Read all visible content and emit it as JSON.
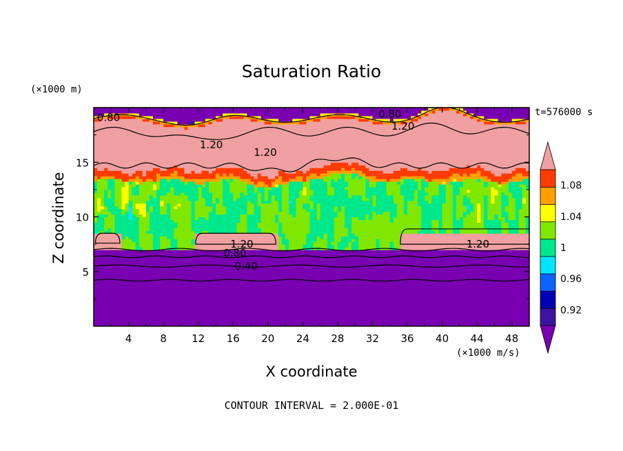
{
  "chart_data": {
    "type": "heatmap",
    "title": "Saturation Ratio",
    "xlabel": "X coordinate",
    "ylabel": "Z coordinate",
    "x_unit": "(×1000 m/s)",
    "y_unit": "(×1000 m)",
    "time_label": "t=576000 s",
    "footer": "CONTOUR INTERVAL = 2.000E-01",
    "xlim": [
      0,
      50
    ],
    "ylim": [
      0,
      20
    ],
    "x_ticks": [
      4,
      8,
      12,
      16,
      20,
      24,
      28,
      32,
      36,
      40,
      44,
      48
    ],
    "y_ticks": [
      5,
      10,
      15
    ],
    "colorbar": {
      "levels": [
        0.9,
        0.92,
        0.94,
        0.96,
        0.98,
        1,
        1.02,
        1.04,
        1.06,
        1.08,
        1.1
      ],
      "labels": [
        "0.92",
        "0.96",
        "1",
        "1.04",
        "1.08"
      ],
      "label_values": [
        0.92,
        0.96,
        1,
        1.04,
        1.08
      ],
      "colors": [
        "#7800b0",
        "#3c14a0",
        "#0000b4",
        "#0a64ff",
        "#00e6ff",
        "#00e88c",
        "#80e800",
        "#ffff00",
        "#ffa000",
        "#ff3c00",
        "#f0a0a0"
      ],
      "extend": "both"
    },
    "contour_labels": [
      {
        "text": "0.80",
        "x": 1.7,
        "y": 19.1
      },
      {
        "text": "0.80",
        "x": 34.0,
        "y": 19.4
      },
      {
        "text": "1.20",
        "x": 35.5,
        "y": 18.3
      },
      {
        "text": "1.20",
        "x": 13.5,
        "y": 16.6
      },
      {
        "text": "1.20",
        "x": 19.7,
        "y": 15.9
      },
      {
        "text": "1.20",
        "x": 17.0,
        "y": 7.5
      },
      {
        "text": "0.80",
        "x": 16.2,
        "y": 6.7
      },
      {
        "text": "0.40",
        "x": 17.5,
        "y": 5.5
      },
      {
        "text": "1.20",
        "x": 44.1,
        "y": 7.5
      }
    ]
  }
}
